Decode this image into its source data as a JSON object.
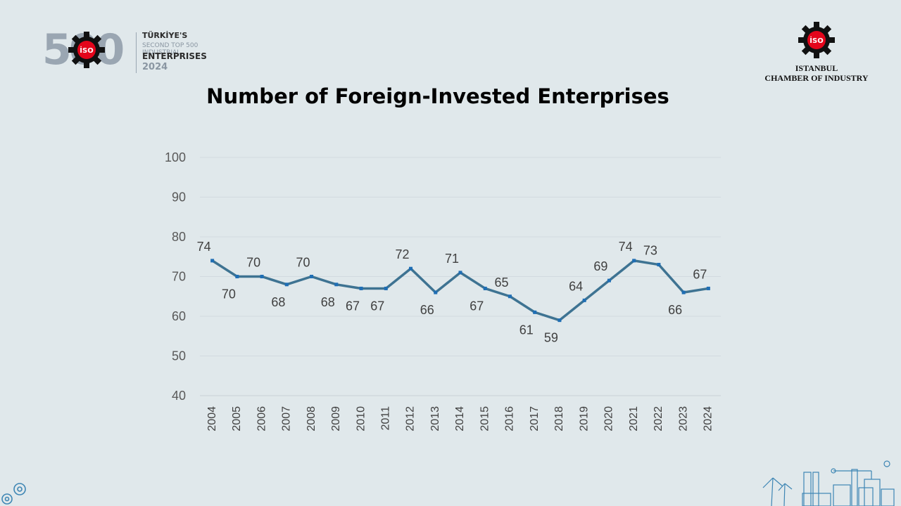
{
  "brand": {
    "big_number": "500",
    "iso_mark": "İSO",
    "line1": "TÜRKİYE'S",
    "line2": "SECOND TOP 500 INDUSTRIAL",
    "line3": "ENTERPRISES",
    "line4": "2024"
  },
  "org": {
    "iso_mark": "İSO",
    "name_line1": "ISTANBUL",
    "name_line2": "CHAMBER OF INDUSTRY"
  },
  "page_title": "Number of Foreign-Invested Enterprises",
  "icons": [
    "gear-logo-icon",
    "gears-decor-icon",
    "industrial-city-decor-icon"
  ],
  "colors": {
    "line": "#3e7392",
    "marker": "#1f6eb4",
    "background": "#e0e8eb",
    "gear": "#111111",
    "iso_red": "#e3051b"
  },
  "chart_data": {
    "type": "line",
    "title": "Number of Foreign-Invested Enterprises",
    "xlabel": "",
    "ylabel": "",
    "categories": [
      "2004",
      "2005",
      "2006",
      "2007",
      "2008",
      "2009",
      "2010",
      "2011",
      "2012",
      "2013",
      "2014",
      "2015",
      "2016",
      "2017",
      "2018",
      "2019",
      "2020",
      "2021",
      "2022",
      "2023",
      "2024"
    ],
    "values": [
      74,
      70,
      70,
      68,
      70,
      68,
      67,
      67,
      72,
      66,
      71,
      67,
      65,
      61,
      59,
      64,
      69,
      74,
      73,
      66,
      67
    ],
    "label_position": [
      "above",
      "below",
      "above",
      "below",
      "above",
      "below",
      "below",
      "below",
      "above",
      "below",
      "above",
      "below",
      "above",
      "below",
      "below",
      "above",
      "above",
      "above",
      "above",
      "below",
      "above"
    ],
    "ylim": [
      40,
      100
    ],
    "yticks": [
      40,
      50,
      60,
      70,
      80,
      90,
      100
    ],
    "grid": true,
    "legend": "none"
  }
}
